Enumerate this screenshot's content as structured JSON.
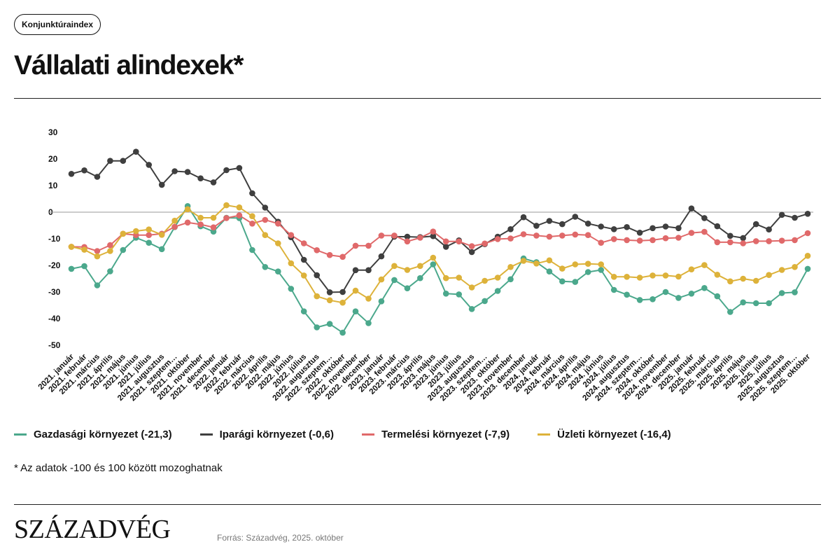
{
  "badge": "Konjunktúraindex",
  "title": "Vállalati alindexek*",
  "footnote": "* Az adatok -100 és 100 között mozoghatnak",
  "logo": "SZÁZADVÉG",
  "source": "Forrás: Századvég, 2025. október",
  "chart_data": {
    "type": "line",
    "ylim": [
      -50,
      30
    ],
    "yticks": [
      30,
      20,
      10,
      0,
      -10,
      -20,
      -30,
      -40,
      -50
    ],
    "grid": false,
    "zero_line": true,
    "legend_position": "bottom",
    "categories": [
      "2021. január",
      "2021. február",
      "2021. március",
      "2021. április",
      "2021. május",
      "2021. június",
      "2021. július",
      "2021. augusztus",
      "2021. szeptem…",
      "2021. október",
      "2021. november",
      "2021. december",
      "2022. január",
      "2022. február",
      "2022. március",
      "2022. április",
      "2022. május",
      "2022. június",
      "2022. július",
      "2022. augusztus",
      "2022. szeptem…",
      "2022. október",
      "2022. november",
      "2022. december",
      "2023. január",
      "2023. február",
      "2023. március",
      "2023. április",
      "2023. május",
      "2023. június",
      "2023. július",
      "2023. augusztus",
      "2023. szeptem…",
      "2023. október",
      "2023. november",
      "2023. december",
      "2024. január",
      "2024. február",
      "2024. március",
      "2024. április",
      "2024. május",
      "2024. június",
      "2024. július",
      "2024. augusztus",
      "2024. szeptem…",
      "2024. október",
      "2024. november",
      "2024. december",
      "2025. január",
      "2025. február",
      "2025. március",
      "2025. április",
      "2025. május",
      "2025. június",
      "2025. július",
      "2025. augusztus",
      "2025. szeptem…",
      "2025. október"
    ],
    "series": [
      {
        "name": "Gazdasági környezet",
        "legend_label": "Gazdasági környezet (-21,3)",
        "color": "#4ba88c",
        "values": [
          -21.3,
          -20.3,
          -27.5,
          -22.2,
          -14.2,
          -9.6,
          -11.5,
          -13.9,
          -5.6,
          2.3,
          -5.3,
          -7.3,
          -2.1,
          -2.2,
          -14.2,
          -20.6,
          -22.3,
          -28.8,
          -37.3,
          -43.3,
          -42.0,
          -45.3,
          -37.3,
          -41.7,
          -33.5,
          -25.5,
          -28.6,
          -24.8,
          -19.6,
          -30.6,
          -30.9,
          -36.4,
          -33.4,
          -29.6,
          -25.2,
          -17.4,
          -18.8,
          -22.3,
          -26.0,
          -26.2,
          -22.5,
          -21.7,
          -29.2,
          -31.0,
          -33.0,
          -32.7,
          -30.0,
          -32.2,
          -30.6,
          -28.5,
          -31.6,
          -37.5,
          -33.9,
          -34.2,
          -34.2,
          -30.4,
          -30.1,
          -21.3
        ]
      },
      {
        "name": "Iparági környezet",
        "legend_label": "Iparági környezet (-0,6)",
        "color": "#3f3f3f",
        "values": [
          14.4,
          15.7,
          13.3,
          19.3,
          19.3,
          22.7,
          17.8,
          10.3,
          15.4,
          15.1,
          12.7,
          11.2,
          15.8,
          16.6,
          7.1,
          1.7,
          -3.6,
          -9.4,
          -17.9,
          -23.7,
          -30.1,
          -30.0,
          -21.8,
          -21.8,
          -16.6,
          -9.2,
          -9.2,
          -9.4,
          -9.0,
          -13.0,
          -10.6,
          -15.0,
          -12.0,
          -9.2,
          -6.4,
          -1.9,
          -5.1,
          -3.3,
          -4.5,
          -1.7,
          -4.3,
          -5.4,
          -6.4,
          -5.6,
          -7.7,
          -6.0,
          -5.4,
          -6.0,
          1.4,
          -2.2,
          -5.3,
          -8.9,
          -9.7,
          -4.5,
          -6.5,
          -1.0,
          -2.1,
          -0.6
        ]
      },
      {
        "name": "Termelési környezet",
        "legend_label": "Termelési környezet (-7,9)",
        "color": "#e0696a",
        "values": [
          -13.0,
          -13.1,
          -14.6,
          -12.4,
          -8.1,
          -8.6,
          -8.6,
          -8.1,
          -5.5,
          -3.9,
          -4.6,
          -5.7,
          -2.2,
          -1.2,
          -4.3,
          -2.9,
          -4.3,
          -8.6,
          -11.7,
          -14.3,
          -16.1,
          -16.8,
          -12.6,
          -12.6,
          -8.8,
          -8.8,
          -11.0,
          -9.6,
          -7.3,
          -11.0,
          -11.0,
          -12.8,
          -11.8,
          -10.1,
          -9.9,
          -8.3,
          -8.8,
          -9.2,
          -8.8,
          -8.4,
          -8.6,
          -11.5,
          -10.1,
          -10.5,
          -10.7,
          -10.5,
          -9.8,
          -9.6,
          -7.8,
          -7.4,
          -11.3,
          -11.3,
          -11.7,
          -10.9,
          -10.9,
          -10.7,
          -10.5,
          -7.9
        ]
      },
      {
        "name": "Üzleti környezet",
        "legend_label": "Üzleti környezet (-16,4)",
        "color": "#ddb23a",
        "values": [
          -13.0,
          -14.1,
          -16.6,
          -14.6,
          -8.1,
          -7.1,
          -6.5,
          -8.5,
          -3.2,
          1.1,
          -2.1,
          -2.1,
          2.6,
          1.8,
          -1.5,
          -8.6,
          -11.7,
          -19.2,
          -23.8,
          -31.6,
          -33.1,
          -34.0,
          -29.5,
          -32.5,
          -25.3,
          -20.2,
          -21.7,
          -20.2,
          -17.1,
          -24.8,
          -24.6,
          -28.3,
          -25.8,
          -24.6,
          -20.6,
          -18.3,
          -19.3,
          -18.1,
          -21.2,
          -19.6,
          -19.4,
          -19.6,
          -24.3,
          -24.3,
          -24.6,
          -23.8,
          -23.8,
          -24.2,
          -21.5,
          -19.9,
          -23.5,
          -26.0,
          -25.0,
          -25.8,
          -23.6,
          -21.7,
          -20.6,
          -16.4
        ]
      }
    ]
  }
}
